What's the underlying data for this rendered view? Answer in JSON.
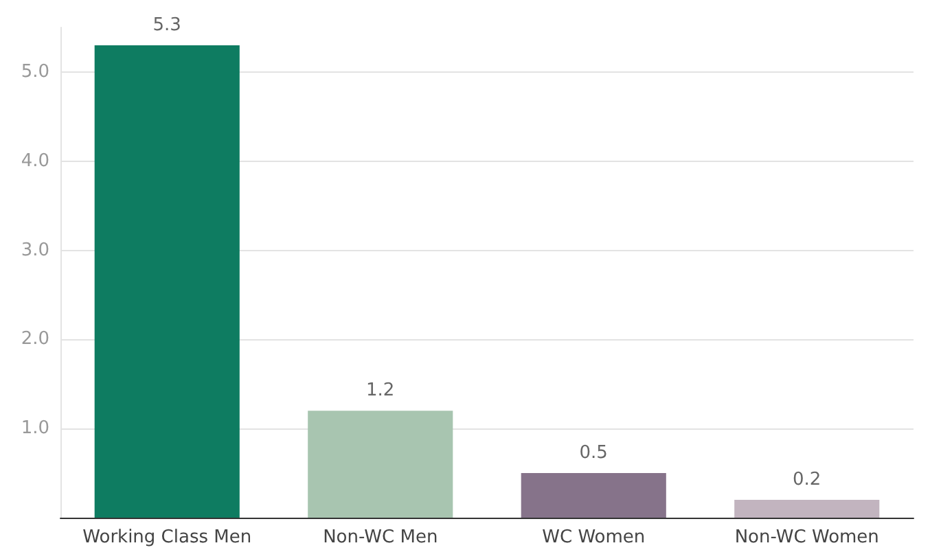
{
  "chart_data": {
    "type": "bar",
    "categories": [
      "Working Class Men",
      "Non-WC Men",
      "WC Women",
      "Non-WC Women"
    ],
    "values": [
      5.3,
      1.2,
      0.5,
      0.2
    ],
    "colors": [
      "#0e7c61",
      "#a8c5b0",
      "#86738a",
      "#c2b4bf"
    ],
    "ylim": [
      0,
      5.5
    ],
    "yticks": [
      {
        "value": 0,
        "label": null
      },
      {
        "value": 1,
        "label": "1.0"
      },
      {
        "value": 2,
        "label": "2.0"
      },
      {
        "value": 3,
        "label": "3.0"
      },
      {
        "value": 4,
        "label": "4.0"
      },
      {
        "value": 5,
        "label": "5.0"
      }
    ],
    "grid": "y",
    "data_labels": true
  }
}
